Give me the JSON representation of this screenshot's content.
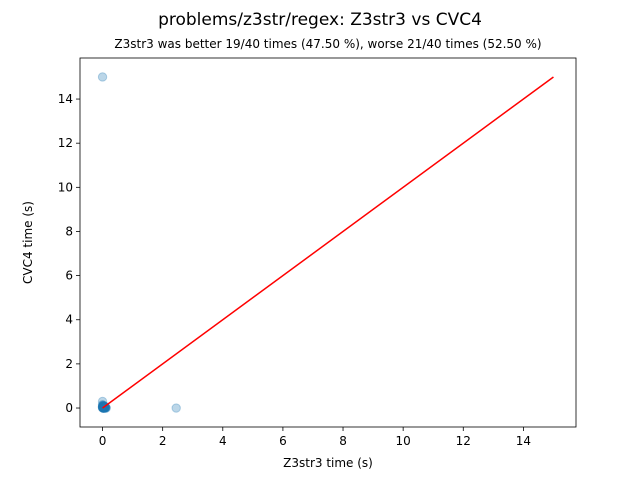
{
  "chart_data": {
    "type": "scatter",
    "title": "problems/z3str/regex: Z3str3 vs CVC4",
    "subtitle": "Z3str3 was better 19/40 times (47.50 %), worse 21/40 times (52.50 %)",
    "xlabel": "Z3str3 time (s)",
    "ylabel": "CVC4 time (s)",
    "xlim": [
      -0.75,
      15.75
    ],
    "ylim": [
      -0.86,
      15.86
    ],
    "xticks": [
      0,
      2,
      4,
      6,
      8,
      10,
      12,
      14
    ],
    "yticks": [
      0,
      2,
      4,
      6,
      8,
      10,
      12,
      14
    ],
    "grid": false,
    "series": [
      {
        "color": "#1f77b4",
        "opacity": 0.3,
        "x": [
          0.0,
          2.45,
          0.0,
          0.0,
          0.02,
          0.05,
          0.08,
          0.1,
          0.12,
          0.0,
          0.03,
          0.06,
          0.01,
          0.04,
          0.09,
          0.02,
          0.0,
          0.05,
          0.07,
          0.03,
          0.01,
          0.11,
          0.0,
          0.02,
          0.06,
          0.04,
          0.0,
          0.08,
          0.03,
          0.01,
          0.05,
          0.02,
          0.1,
          0.0,
          0.07,
          0.04,
          0.02,
          0.01,
          0.06,
          0.03
        ],
        "y": [
          15.0,
          0.0,
          0.3,
          0.15,
          0.1,
          0.05,
          0.02,
          0.0,
          0.0,
          0.08,
          0.0,
          0.03,
          0.12,
          0.06,
          0.01,
          0.04,
          0.02,
          0.0,
          0.09,
          0.07,
          0.0,
          0.02,
          0.05,
          0.11,
          0.0,
          0.03,
          0.06,
          0.04,
          0.0,
          0.02,
          0.08,
          0.0,
          0.05,
          0.01,
          0.03,
          0.0,
          0.07,
          0.04,
          0.02,
          0.01
        ]
      }
    ],
    "reference_line": {
      "x": [
        0,
        15
      ],
      "y": [
        0,
        15
      ],
      "color": "#ff0000"
    }
  }
}
